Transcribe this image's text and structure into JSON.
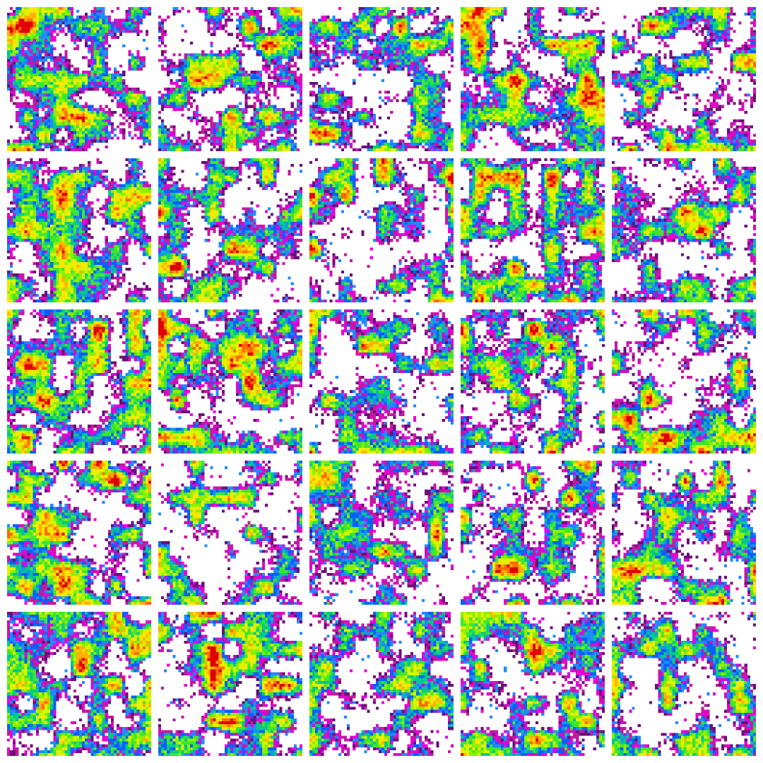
{
  "figure": {
    "rows": 5,
    "cols": 5,
    "colormap": [
      "#6b0f7a",
      "#c21a9e",
      "#e600d6",
      "#1f8bff",
      "#0a5fff",
      "#00c98a",
      "#3fe62e",
      "#8cf000",
      "#d8f500",
      "#ffe600",
      "#ffb000",
      "#ff6a00",
      "#e00000"
    ],
    "background": "#ffffff",
    "panel_border": "none",
    "panels": [
      {
        "id": 1
      },
      {
        "id": 2
      },
      {
        "id": 3
      },
      {
        "id": 4
      },
      {
        "id": 5
      },
      {
        "id": 6
      },
      {
        "id": 7
      },
      {
        "id": 8
      },
      {
        "id": 9
      },
      {
        "id": 10
      },
      {
        "id": 11
      },
      {
        "id": 12
      },
      {
        "id": 13
      },
      {
        "id": 14
      },
      {
        "id": 15
      },
      {
        "id": 16
      },
      {
        "id": 17
      },
      {
        "id": 18
      },
      {
        "id": 19
      },
      {
        "id": 20
      },
      {
        "id": 21
      },
      {
        "id": 22
      },
      {
        "id": 23
      },
      {
        "id": 24
      },
      {
        "id": 25
      }
    ]
  }
}
